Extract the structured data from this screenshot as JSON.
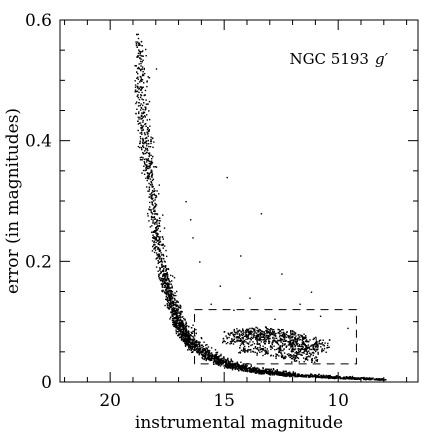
{
  "chart_data": {
    "type": "scatter",
    "title": "",
    "annotation": {
      "text": "NGC 5193",
      "italic": "g′"
    },
    "xlabel": "instrumental magnitude",
    "ylabel": "error (in magnitudes)",
    "x_reversed": true,
    "xlim": [
      22.2,
      6.5
    ],
    "ylim": [
      0,
      0.6
    ],
    "x_ticks": [
      20,
      15,
      10
    ],
    "x_tick_labels": [
      "20",
      "15",
      "10"
    ],
    "y_ticks": [
      0,
      0.2,
      0.4,
      0.6
    ],
    "y_tick_labels": [
      "0",
      "0.2",
      "0.4",
      "0.6"
    ],
    "grid": false,
    "legend": "none",
    "marker_color": "#000000",
    "selection_box": {
      "x": [
        16.3,
        9.2
      ],
      "y": [
        0.03,
        0.12
      ],
      "style": "dashed"
    },
    "series": [
      {
        "kind": "error-envelope",
        "points": [
          {
            "x": 18.9,
            "y": 0.54
          },
          {
            "x": 18.8,
            "y": 0.5
          },
          {
            "x": 18.7,
            "y": 0.46
          },
          {
            "x": 18.55,
            "y": 0.42
          },
          {
            "x": 18.4,
            "y": 0.38
          },
          {
            "x": 18.3,
            "y": 0.34
          },
          {
            "x": 18.2,
            "y": 0.3
          },
          {
            "x": 18.05,
            "y": 0.26
          },
          {
            "x": 17.9,
            "y": 0.22
          },
          {
            "x": 17.7,
            "y": 0.18
          },
          {
            "x": 17.45,
            "y": 0.14
          },
          {
            "x": 17.1,
            "y": 0.1
          },
          {
            "x": 16.6,
            "y": 0.07
          },
          {
            "x": 16.0,
            "y": 0.05
          },
          {
            "x": 15.0,
            "y": 0.03
          },
          {
            "x": 13.5,
            "y": 0.018
          },
          {
            "x": 12.0,
            "y": 0.012
          },
          {
            "x": 10.0,
            "y": 0.008
          },
          {
            "x": 8.0,
            "y": 0.005
          }
        ]
      },
      {
        "kind": "clump",
        "points": [
          {
            "x": 14.5,
            "y": 0.075
          },
          {
            "x": 14.0,
            "y": 0.08
          },
          {
            "x": 13.5,
            "y": 0.082
          },
          {
            "x": 13.0,
            "y": 0.078
          },
          {
            "x": 12.5,
            "y": 0.075
          },
          {
            "x": 12.0,
            "y": 0.07
          },
          {
            "x": 11.5,
            "y": 0.065
          },
          {
            "x": 11.0,
            "y": 0.06
          },
          {
            "x": 13.8,
            "y": 0.06
          },
          {
            "x": 13.0,
            "y": 0.055
          },
          {
            "x": 12.2,
            "y": 0.05
          },
          {
            "x": 11.5,
            "y": 0.045
          }
        ]
      },
      {
        "kind": "outliers",
        "points": [
          {
            "x": 18.0,
            "y": 0.52
          },
          {
            "x": 16.7,
            "y": 0.3
          },
          {
            "x": 16.5,
            "y": 0.27
          },
          {
            "x": 16.4,
            "y": 0.24
          },
          {
            "x": 16.1,
            "y": 0.2
          },
          {
            "x": 14.9,
            "y": 0.34
          },
          {
            "x": 14.3,
            "y": 0.21
          },
          {
            "x": 13.4,
            "y": 0.28
          },
          {
            "x": 12.5,
            "y": 0.18
          },
          {
            "x": 11.2,
            "y": 0.15
          },
          {
            "x": 13.9,
            "y": 0.14
          },
          {
            "x": 15.2,
            "y": 0.16
          },
          {
            "x": 10.8,
            "y": 0.11
          },
          {
            "x": 9.6,
            "y": 0.09
          },
          {
            "x": 11.7,
            "y": 0.13
          },
          {
            "x": 15.6,
            "y": 0.13
          },
          {
            "x": 12.8,
            "y": 0.105
          },
          {
            "x": 14.6,
            "y": 0.12
          }
        ]
      }
    ]
  }
}
